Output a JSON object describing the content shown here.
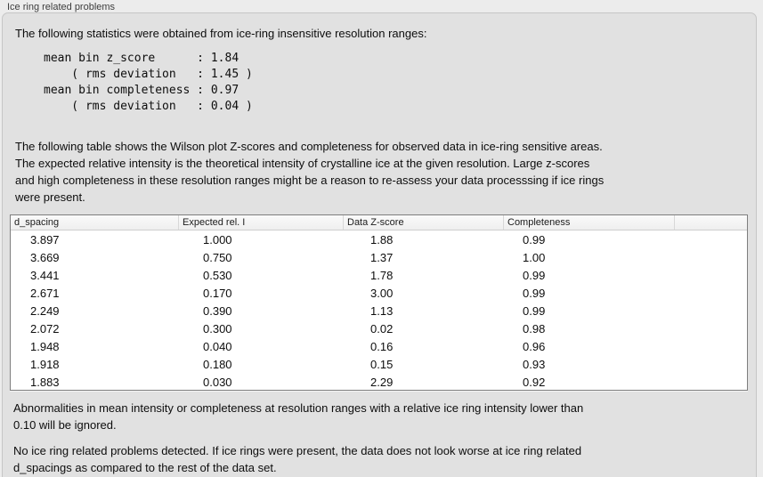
{
  "panel": {
    "title": "Ice ring related problems",
    "intro": "The following statistics were obtained from ice-ring insensitive resolution ranges:",
    "stats_block": "mean bin z_score      : 1.84\n    ( rms deviation   : 1.45 )\nmean bin completeness : 0.97\n    ( rms deviation   : 0.04 )",
    "table_description": "The following table shows the Wilson plot Z-scores and completeness for observed data in ice-ring sensitive areas.\nThe expected relative intensity is the theoretical intensity of crystalline ice at the given resolution. Large z-scores\nand high completeness in these resolution ranges might be a reason to re-assess your data processsing if ice rings\nwere present.",
    "note_ignore": "Abnormalities in mean intensity or completeness at resolution ranges with a relative ice ring intensity lower than\n0.10 will be ignored.",
    "conclusion": "No ice ring related problems detected. If ice rings were present, the data does not look worse at ice ring related\nd_spacings as compared to the rest of the data set."
  },
  "table": {
    "columns": [
      "d_spacing",
      "Expected rel. I",
      "Data Z-score",
      "Completeness",
      ""
    ],
    "rows": [
      [
        "3.897",
        "1.000",
        "1.88",
        "0.99"
      ],
      [
        "3.669",
        "0.750",
        "1.37",
        "1.00"
      ],
      [
        "3.441",
        "0.530",
        "1.78",
        "0.99"
      ],
      [
        "2.671",
        "0.170",
        "3.00",
        "0.99"
      ],
      [
        "2.249",
        "0.390",
        "1.13",
        "0.99"
      ],
      [
        "2.072",
        "0.300",
        "0.02",
        "0.98"
      ],
      [
        "1.948",
        "0.040",
        "0.16",
        "0.96"
      ],
      [
        "1.918",
        "0.180",
        "0.15",
        "0.93"
      ],
      [
        "1.883",
        "0.030",
        "2.29",
        "0.92"
      ]
    ]
  },
  "colors": {
    "outer_background": "#ececec",
    "panel_background": "#e1e1e1",
    "panel_border": "#c6c6c6",
    "table_border": "#7e7e7e",
    "table_header_background": "#f5f5f5",
    "text": "#0d0d0d"
  }
}
